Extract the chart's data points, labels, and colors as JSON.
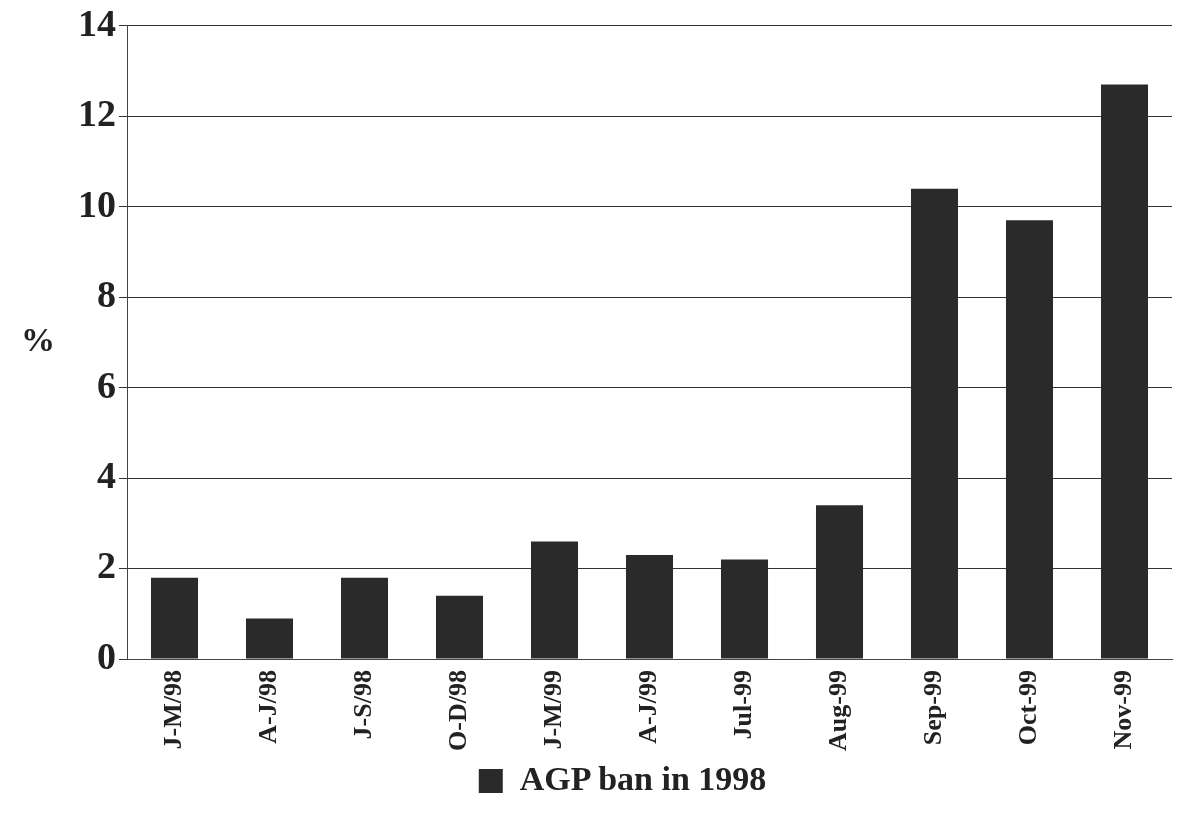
{
  "chart_data": {
    "type": "bar",
    "ylabel": "%",
    "categories": [
      "J-M/98",
      "A-J/98",
      "J-S/98",
      "O-D/98",
      "J-M/99",
      "A-J/99",
      "Jul-99",
      "Aug-99",
      "Sep-99",
      "Oct-99",
      "Nov-99"
    ],
    "series": [
      {
        "name": "AGP ban in 1998",
        "color": "#2a2a2a",
        "values": [
          1.8,
          0.9,
          1.8,
          1.4,
          2.6,
          2.3,
          2.2,
          3.4,
          10.4,
          9.7,
          12.7
        ]
      }
    ],
    "ylim": [
      0,
      14
    ],
    "yticks": [
      0,
      2,
      4,
      6,
      8,
      10,
      12,
      14
    ],
    "grid": "y",
    "legend": "bottom"
  }
}
